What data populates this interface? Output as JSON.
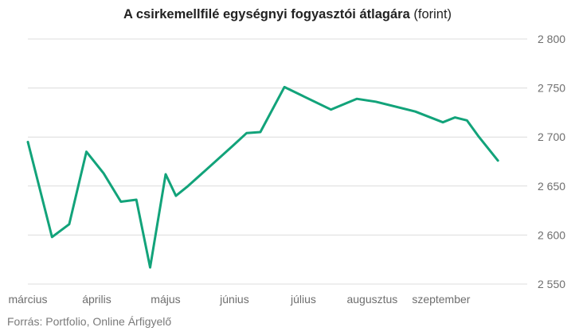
{
  "title": {
    "main": "A csirkemellfilé egységnyi fogyasztói átlagára",
    "sub": "(forint)"
  },
  "source": "Forrás: Portfolio, Online Árfigyelő",
  "colors": {
    "line": "#12a37a",
    "grid": "#dcdcdc",
    "text": "#6e6e6e"
  },
  "chart_data": {
    "type": "line",
    "title": "A csirkemellfilé egységnyi fogyasztói átlagára (forint)",
    "xlabel": "",
    "ylabel": "",
    "ylim": [
      2550,
      2800
    ],
    "y_axis_position": "right",
    "grid": true,
    "yticks": [
      2550,
      2600,
      2650,
      2700,
      2750,
      2800
    ],
    "ytick_labels": [
      "2 550",
      "2 600",
      "2 650",
      "2 700",
      "2 750",
      "2 800"
    ],
    "month_labels": [
      "március",
      "április",
      "május",
      "június",
      "július",
      "augusztus",
      "szeptember"
    ],
    "x_domain": [
      0,
      29
    ],
    "month_positions": [
      0,
      4,
      8,
      12,
      16,
      20,
      24
    ],
    "series": [
      {
        "x": [
          0,
          1.4,
          2.4,
          3.4,
          4.4,
          5.4,
          6.3,
          7.1,
          8,
          8.6,
          9.3,
          11.9,
          12.7,
          13.5,
          14.9,
          17.6,
          19.1,
          20.2,
          22.5,
          24.1,
          24.8,
          25.5,
          26.2,
          27.3
        ],
        "y": [
          2695,
          2598,
          2611,
          2685,
          2663,
          2634,
          2636,
          2567,
          2662,
          2640,
          2650,
          2691,
          2704,
          2705,
          2751,
          2728,
          2739,
          2736,
          2726,
          2715,
          2720,
          2717,
          2700,
          2676
        ]
      }
    ]
  }
}
